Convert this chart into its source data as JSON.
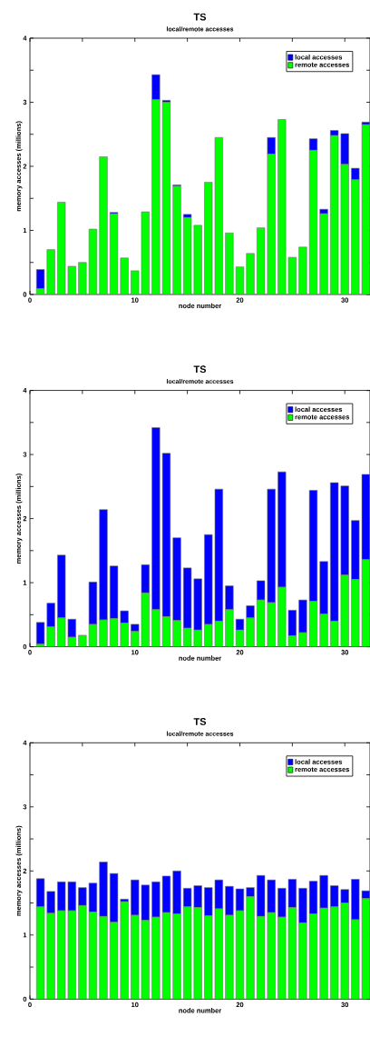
{
  "chart_data": [
    {
      "type": "bar",
      "title": "TS",
      "subtitle": "local/remote accesses",
      "xlabel": "node number",
      "ylabel": "memory accesses (millions)",
      "stacked": true,
      "legend": "top right",
      "x": [
        1,
        2,
        3,
        4,
        5,
        6,
        7,
        8,
        9,
        10,
        11,
        12,
        13,
        14,
        15,
        16,
        17,
        18,
        19,
        20,
        21,
        22,
        23,
        24,
        25,
        26,
        27,
        28,
        29,
        30,
        31,
        32
      ],
      "xlim": [
        0,
        32.4
      ],
      "ylim": [
        0,
        4
      ],
      "xticks": [
        0,
        {
          "value": 5,
          "label": null
        },
        10,
        {
          "value": 15,
          "label": null
        },
        20,
        {
          "value": 25,
          "label": null
        },
        30
      ],
      "yticks": [
        0,
        {
          "value": 0.5,
          "label": null
        },
        1,
        {
          "value": 1.5,
          "label": null
        },
        2,
        {
          "value": 2.5,
          "label": null
        },
        3,
        {
          "value": 3.5,
          "label": null
        },
        4
      ],
      "series": [
        {
          "name": "remote accesses",
          "color": "#00ff00",
          "values": [
            0.09,
            0.7,
            1.44,
            0.44,
            0.5,
            1.02,
            2.15,
            1.26,
            0.57,
            0.37,
            1.29,
            3.04,
            3.0,
            1.69,
            1.2,
            1.08,
            1.75,
            2.45,
            0.96,
            0.43,
            0.64,
            1.04,
            2.19,
            2.73,
            0.58,
            0.74,
            2.25,
            1.26,
            2.48,
            2.03,
            1.79,
            2.65
          ]
        },
        {
          "name": "local accesses",
          "color": "#0000ff",
          "values": [
            0.3,
            0,
            0,
            0,
            0,
            0,
            0,
            0.02,
            0,
            0,
            0,
            0.39,
            0.03,
            0.02,
            0.05,
            0,
            0,
            0,
            0,
            0,
            0,
            0,
            0.26,
            0,
            0,
            0,
            0.18,
            0.07,
            0.08,
            0.48,
            0.18,
            0.04
          ]
        }
      ]
    },
    {
      "type": "bar",
      "title": "TS",
      "subtitle": "local/remote accesses",
      "xlabel": "node number",
      "ylabel": "memory accesses (millions)",
      "stacked": true,
      "legend": "top right",
      "x": [
        1,
        2,
        3,
        4,
        5,
        6,
        7,
        8,
        9,
        10,
        11,
        12,
        13,
        14,
        15,
        16,
        17,
        18,
        19,
        20,
        21,
        22,
        23,
        24,
        25,
        26,
        27,
        28,
        29,
        30,
        31,
        32
      ],
      "xlim": [
        0,
        32.4
      ],
      "ylim": [
        0,
        4
      ],
      "xticks": [
        0,
        {
          "value": 5,
          "label": null
        },
        10,
        {
          "value": 15,
          "label": null
        },
        20,
        {
          "value": 25,
          "label": null
        },
        30
      ],
      "yticks": [
        0,
        {
          "value": 0.5,
          "label": null
        },
        1,
        {
          "value": 1.5,
          "label": null
        },
        2,
        {
          "value": 2.5,
          "label": null
        },
        3,
        {
          "value": 3.5,
          "label": null
        },
        4
      ],
      "series": [
        {
          "name": "remote accesses",
          "color": "#00ff00",
          "values": [
            0.04,
            0.31,
            0.45,
            0.15,
            0.18,
            0.35,
            0.42,
            0.44,
            0.37,
            0.24,
            0.84,
            0.58,
            0.47,
            0.41,
            0.29,
            0.26,
            0.35,
            0.4,
            0.58,
            0.26,
            0.45,
            0.73,
            0.69,
            0.93,
            0.17,
            0.22,
            0.71,
            0.51,
            0.4,
            1.12,
            1.05,
            1.36
          ]
        },
        {
          "name": "local accesses",
          "color": "#0000ff",
          "values": [
            0.34,
            0.37,
            0.98,
            0.28,
            0,
            0.66,
            1.72,
            0.82,
            0.19,
            0.11,
            0.44,
            2.84,
            2.55,
            1.29,
            0.94,
            0.8,
            1.4,
            2.06,
            0.37,
            0.17,
            0.19,
            0.3,
            1.77,
            1.8,
            0.4,
            0.51,
            1.73,
            0.82,
            2.16,
            1.39,
            0.92,
            1.33
          ]
        }
      ]
    },
    {
      "type": "bar",
      "title": "TS",
      "subtitle": "local/remote accesses",
      "xlabel": "node number",
      "ylabel": "memory accesses (millions)",
      "stacked": true,
      "legend": "top right",
      "x": [
        1,
        2,
        3,
        4,
        5,
        6,
        7,
        8,
        9,
        10,
        11,
        12,
        13,
        14,
        15,
        16,
        17,
        18,
        19,
        20,
        21,
        22,
        23,
        24,
        25,
        26,
        27,
        28,
        29,
        30,
        31,
        32
      ],
      "xlim": [
        0,
        32.4
      ],
      "ylim": [
        0,
        4
      ],
      "xticks": [
        0,
        {
          "value": 5,
          "label": null
        },
        10,
        {
          "value": 15,
          "label": null
        },
        20,
        {
          "value": 25,
          "label": null
        },
        30
      ],
      "yticks": [
        0,
        {
          "value": 0.5,
          "label": null
        },
        1,
        {
          "value": 1.5,
          "label": null
        },
        2,
        {
          "value": 2.5,
          "label": null
        },
        3,
        {
          "value": 3.5,
          "label": null
        },
        4
      ],
      "series": [
        {
          "name": "remote accesses",
          "color": "#00ff00",
          "values": [
            1.44,
            1.34,
            1.38,
            1.38,
            1.46,
            1.36,
            1.29,
            1.2,
            1.52,
            1.31,
            1.23,
            1.28,
            1.35,
            1.33,
            1.44,
            1.43,
            1.3,
            1.41,
            1.31,
            1.38,
            1.6,
            1.29,
            1.35,
            1.28,
            1.43,
            1.19,
            1.33,
            1.42,
            1.44,
            1.5,
            1.24,
            1.57
          ]
        },
        {
          "name": "local accesses",
          "color": "#0000ff",
          "values": [
            0.44,
            0.34,
            0.45,
            0.45,
            0.28,
            0.45,
            0.85,
            0.76,
            0.04,
            0.55,
            0.55,
            0.55,
            0.57,
            0.67,
            0.29,
            0.34,
            0.44,
            0.45,
            0.45,
            0.34,
            0.14,
            0.64,
            0.51,
            0.45,
            0.44,
            0.54,
            0.51,
            0.51,
            0.33,
            0.21,
            0.63,
            0.12
          ]
        }
      ]
    }
  ]
}
